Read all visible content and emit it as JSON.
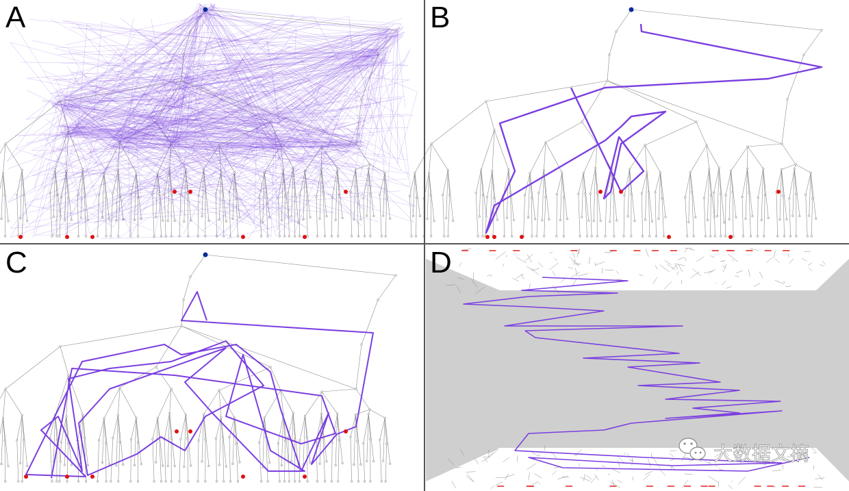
{
  "panels": [
    {
      "id": "A",
      "label": "A"
    },
    {
      "id": "B",
      "label": "B"
    },
    {
      "id": "C",
      "label": "C"
    },
    {
      "id": "D",
      "label": "D"
    }
  ],
  "watermark": {
    "text": "大数据文摘",
    "icon": "wechat-icon"
  },
  "colors": {
    "tree": "#8a8a8a",
    "node": "#666666",
    "path": "#7b3fe0",
    "root": "#0a2a9a",
    "target": "#e01010",
    "wall": "#cfcfcf",
    "divider": "#555555"
  }
}
